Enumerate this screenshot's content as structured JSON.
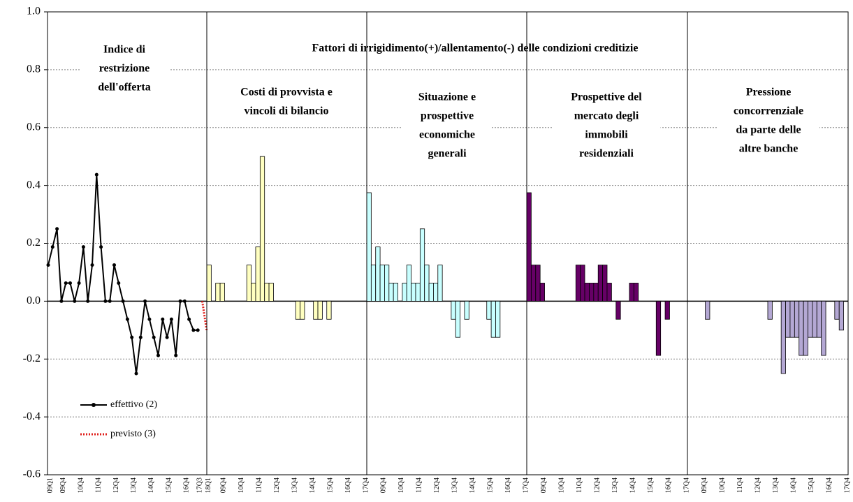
{
  "chart_data": {
    "type": "panels",
    "header": "Fattori di irrigidimento(+)/allentamento(-) delle condizioni creditizie",
    "ylim": [
      -0.6,
      1.0
    ],
    "yticks": [
      {
        "value": -0.6,
        "label": "-0.6"
      },
      {
        "value": -0.4,
        "label": "-0.4"
      },
      {
        "value": -0.2,
        "label": "-0.2"
      },
      {
        "value": 0,
        "label": "0.0"
      },
      {
        "value": 0.2,
        "label": "0.2"
      },
      {
        "value": 0.4,
        "label": "0.4"
      },
      {
        "value": 0.6,
        "label": "0.6"
      },
      {
        "value": 0.8,
        "label": "0.8"
      },
      {
        "value": 1.0,
        "label": "1.0"
      }
    ],
    "grid": true,
    "panels": [
      {
        "type": "line",
        "title": [
          "Indice di",
          "restrizione",
          "dell'offerta"
        ],
        "categories": [
          "09Q1",
          null,
          null,
          "09Q4",
          null,
          null,
          null,
          "10Q4",
          null,
          null,
          null,
          "11Q4",
          null,
          null,
          null,
          "12Q4",
          null,
          null,
          null,
          "13Q4",
          null,
          null,
          null,
          "14Q4",
          null,
          null,
          null,
          "15Q4",
          null,
          null,
          null,
          "16Q4",
          null,
          null,
          "17Q3",
          null,
          "18Q1"
        ],
        "series": [
          {
            "name": "effettivo (2)",
            "color": "#000000",
            "style": "solid",
            "values": [
              0.125,
              0.1875,
              0.25,
              0,
              0.0625,
              0.0625,
              0,
              0.0625,
              0.1875,
              0,
              0.125,
              0.4375,
              0.1875,
              0,
              0,
              0.125,
              0.0625,
              0,
              -0.0625,
              -0.125,
              -0.25,
              -0.125,
              0,
              -0.0625,
              -0.125,
              -0.1875,
              -0.0625,
              -0.125,
              -0.0625,
              -0.1875,
              0,
              0,
              -0.0625,
              -0.1,
              -0.1,
              null,
              null
            ]
          },
          {
            "name": "previsto (3)",
            "color": "#e0201c",
            "style": "dotted",
            "values": [
              null,
              null,
              null,
              null,
              null,
              null,
              null,
              null,
              null,
              null,
              null,
              null,
              null,
              null,
              null,
              null,
              null,
              null,
              null,
              null,
              null,
              null,
              null,
              null,
              null,
              null,
              null,
              null,
              null,
              null,
              null,
              null,
              null,
              null,
              null,
              0,
              -0.1
            ]
          }
        ]
      },
      {
        "type": "bar",
        "title": [
          "Costi di provvista e",
          "vincoli di bilancio"
        ],
        "color": "#ffffc0",
        "categories": [
          null,
          null,
          null,
          "09Q4",
          null,
          null,
          null,
          "10Q4",
          null,
          null,
          null,
          "11Q4",
          null,
          null,
          null,
          "12Q4",
          null,
          null,
          null,
          "13Q4",
          null,
          null,
          null,
          "14Q4",
          null,
          null,
          null,
          "15Q4",
          null,
          null,
          null,
          "16Q4",
          null,
          null,
          null,
          "17Q4"
        ],
        "values": [
          0.125,
          0,
          0.0625,
          0.0625,
          0,
          0,
          0,
          0,
          0,
          0.125,
          0.0625,
          0.1875,
          0.5,
          0.0625,
          0.0625,
          0,
          0,
          0,
          0,
          0,
          -0.0625,
          -0.0625,
          0,
          0,
          -0.0625,
          -0.0625,
          0,
          -0.0625,
          0,
          0,
          0,
          0,
          0,
          0,
          0,
          0
        ]
      },
      {
        "type": "bar",
        "title": [
          "Situazione e",
          "prospettive",
          "economiche",
          "generali"
        ],
        "color": "#c8ffff",
        "categories": [
          null,
          null,
          null,
          "09Q4",
          null,
          null,
          null,
          "10Q4",
          null,
          null,
          null,
          "11Q4",
          null,
          null,
          null,
          "12Q4",
          null,
          null,
          null,
          "13Q4",
          null,
          null,
          null,
          "14Q4",
          null,
          null,
          null,
          "15Q4",
          null,
          null,
          null,
          "16Q4",
          null,
          null,
          null,
          "17Q4"
        ],
        "values": [
          0.375,
          0.125,
          0.1875,
          0.125,
          0.125,
          0.0625,
          0.0625,
          0,
          0.0625,
          0.125,
          0.0625,
          0.0625,
          0.25,
          0.125,
          0.0625,
          0.0625,
          0.125,
          0,
          0,
          -0.0625,
          -0.125,
          0,
          -0.0625,
          0,
          0,
          0,
          0,
          -0.0625,
          -0.125,
          -0.125,
          0,
          0,
          0,
          0,
          0,
          0
        ]
      },
      {
        "type": "bar",
        "title": [
          "Prospettive del",
          "mercato degli",
          "immobili",
          "residenziali"
        ],
        "color": "#660066",
        "categories": [
          null,
          null,
          null,
          "09Q4",
          null,
          null,
          null,
          "10Q4",
          null,
          null,
          null,
          "11Q4",
          null,
          null,
          null,
          "12Q4",
          null,
          null,
          null,
          "13Q4",
          null,
          null,
          null,
          "14Q4",
          null,
          null,
          null,
          "15Q4",
          null,
          null,
          null,
          "16Q4",
          null,
          null,
          null,
          "17Q4"
        ],
        "values": [
          0.375,
          0.125,
          0.125,
          0.0625,
          0,
          0,
          0,
          0,
          0,
          0,
          0,
          0.125,
          0.125,
          0.0625,
          0.0625,
          0.0625,
          0.125,
          0.125,
          0.0625,
          0,
          -0.0625,
          0,
          0,
          0.0625,
          0.0625,
          0,
          0,
          0,
          0,
          -0.1875,
          0,
          -0.0625,
          0,
          0,
          0,
          0
        ]
      },
      {
        "type": "bar",
        "title": [
          "Pressione",
          "concorrenziale",
          "da parte delle",
          "altre banche"
        ],
        "color": "#b4a8d4",
        "categories": [
          null,
          null,
          null,
          "09Q4",
          null,
          null,
          null,
          "10Q4",
          null,
          null,
          null,
          "11Q4",
          null,
          null,
          null,
          "12Q4",
          null,
          null,
          null,
          "13Q4",
          null,
          null,
          null,
          "14Q4",
          null,
          null,
          null,
          "15Q4",
          null,
          null,
          null,
          "16Q4",
          null,
          null,
          null,
          "17Q4"
        ],
        "values": [
          0,
          0,
          0,
          0,
          -0.0625,
          0,
          0,
          0,
          0,
          0,
          0,
          0,
          0,
          0,
          0,
          0,
          0,
          0,
          -0.0625,
          0,
          0,
          -0.25,
          -0.125,
          -0.125,
          -0.125,
          -0.1875,
          -0.1875,
          -0.125,
          -0.125,
          -0.125,
          -0.1875,
          0,
          0,
          -0.0625,
          -0.1,
          0
        ]
      }
    ]
  }
}
